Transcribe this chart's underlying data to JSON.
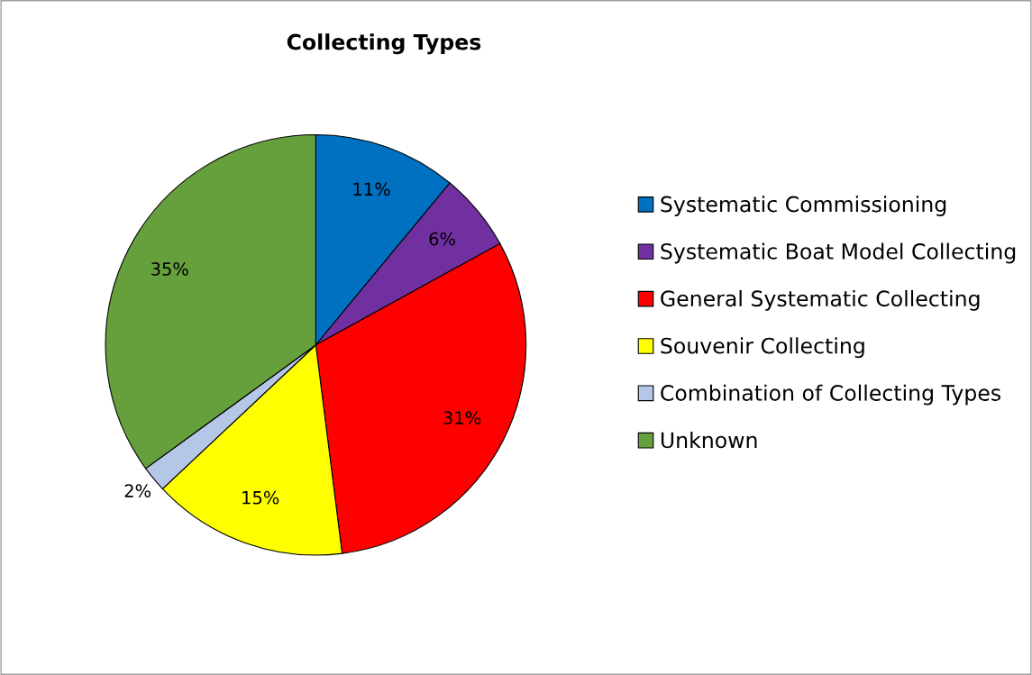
{
  "chart_data": {
    "type": "pie",
    "title": "Collecting Types",
    "categories": [
      "Systematic Commissioning",
      "Systematic Boat Model Collecting",
      "General Systematic Collecting",
      "Souvenir Collecting",
      "Combination of Collecting Types",
      "Unknown"
    ],
    "values": [
      11,
      6,
      31,
      15,
      2,
      35
    ],
    "colors": [
      "#0070c0",
      "#7030a0",
      "#ff0000",
      "#ffff00",
      "#b4c7e7",
      "#66a03c"
    ],
    "value_labels": [
      "11%",
      "6%",
      "31%",
      "15%",
      "2%",
      "35%"
    ],
    "legend": "right"
  }
}
